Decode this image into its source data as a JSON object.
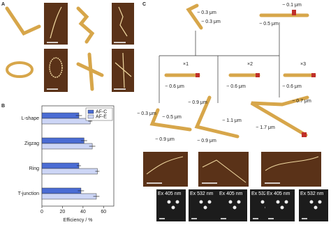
{
  "panels": [
    "A",
    "B",
    "C"
  ],
  "chart_data": {
    "type": "hbar",
    "categories": [
      "L-shape",
      "Zigzag",
      "Ring",
      "T-junction"
    ],
    "series": [
      {
        "name": "AF-C",
        "color": "#4a6cd4",
        "values": [
          36,
          41,
          36,
          38
        ],
        "errors": [
          3,
          3,
          2,
          3
        ]
      },
      {
        "name": "AF-E",
        "color": "#cdd6f6",
        "values": [
          47,
          49,
          54,
          53
        ],
        "errors": [
          2,
          3,
          2,
          3
        ]
      }
    ],
    "xlabel": "Efficiency / %",
    "xlim": [
      0,
      70
    ],
    "xticks": [
      0,
      20,
      40,
      60
    ],
    "legend": "upper right"
  },
  "annotations": [
    "~ 0.3 μm",
    "~ 0.3 μm",
    "~ 0.1 μm",
    "~ 0.5 μm",
    "×1",
    "~ 0.6 μm",
    "×2",
    "~ 0.6 μm",
    "×3",
    "~ 0.6 μm",
    "~ 0.3 μm",
    "~ 0.5 μm",
    "~ 0.9 μm",
    "~ 0.9 μm",
    "~ 1.1 μm",
    "~ 0.9 μm",
    "~ 0.7 μm",
    "~ 1.7 μm"
  ],
  "microscopy_labels": [
    "Ex 405 nm",
    "Ex 532 nm",
    "Ex 405 nm",
    "Ex 532 nm",
    "Ex 405 nm",
    "Ex 532 nm"
  ]
}
